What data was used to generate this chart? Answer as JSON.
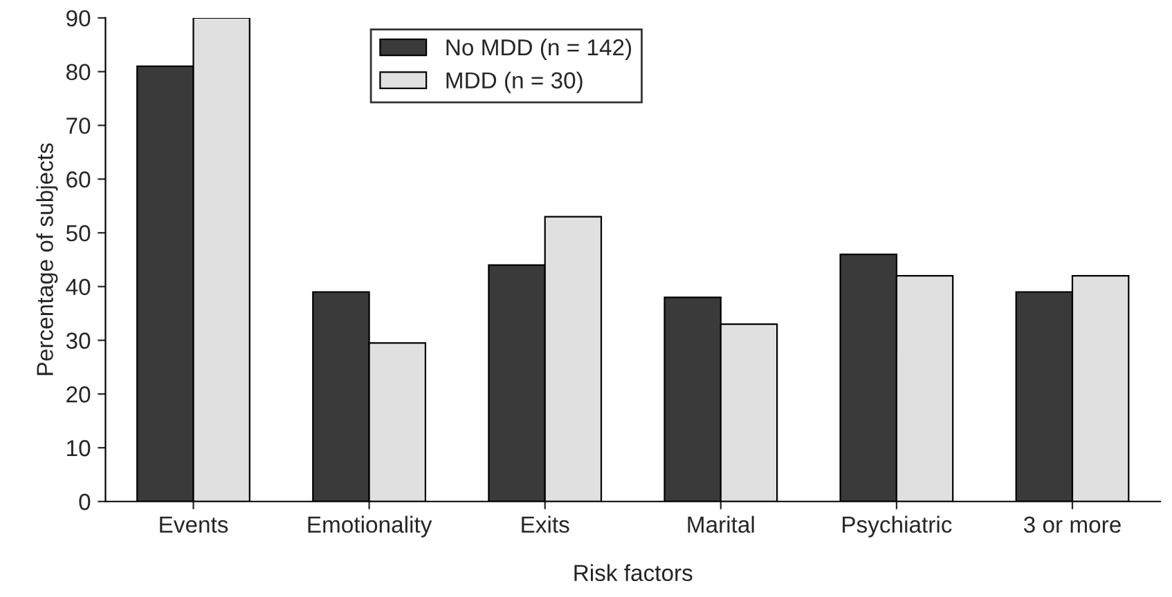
{
  "chart_data": {
    "type": "bar",
    "xlabel": "Risk factors",
    "ylabel": "Percentage of subjects",
    "categories": [
      "Events",
      "Emotionality",
      "Exits",
      "Marital",
      "Psychiatric",
      "3 or more"
    ],
    "series": [
      {
        "name": "No MDD (n = 142)",
        "color": "#3a3a3a",
        "values": [
          81,
          39,
          44,
          38,
          46,
          39
        ]
      },
      {
        "name": "MDD (n = 30)",
        "color": "#e0e0e0",
        "values": [
          90,
          29.5,
          53,
          33,
          42,
          42
        ]
      }
    ],
    "ylim": [
      0,
      90
    ],
    "yticks": [
      0,
      10,
      20,
      30,
      40,
      50,
      60,
      70,
      80,
      90
    ],
    "grid": false,
    "legend": "top"
  }
}
